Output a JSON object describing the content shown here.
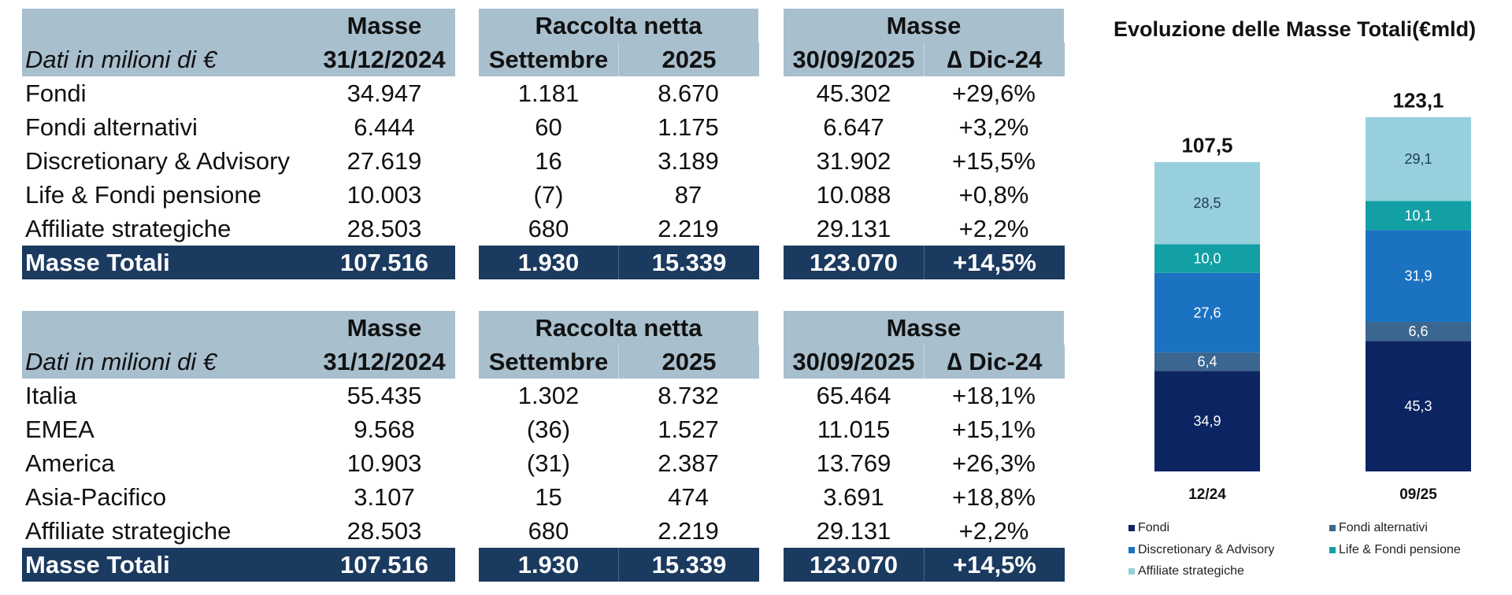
{
  "tables": [
    {
      "group_headers": [
        "Masse",
        "Raccolta netta",
        "Masse"
      ],
      "label_header": "Dati in milioni di €",
      "column_headers": [
        "31/12/2024",
        "Settembre",
        "2025",
        "30/09/2025",
        "∆ Dic-24"
      ],
      "rows": [
        {
          "label": "Fondi",
          "values": [
            "34.947",
            "1.181",
            "8.670",
            "45.302",
            "+29,6%"
          ]
        },
        {
          "label": "Fondi alternativi",
          "values": [
            "6.444",
            "60",
            "1.175",
            "6.647",
            "+3,2%"
          ]
        },
        {
          "label": "Discretionary & Advisory",
          "values": [
            "27.619",
            "16",
            "3.189",
            "31.902",
            "+15,5%"
          ]
        },
        {
          "label": "Life & Fondi pensione",
          "values": [
            "10.003",
            "(7)",
            "87",
            "10.088",
            "+0,8%"
          ]
        },
        {
          "label": "Affiliate strategiche",
          "values": [
            "28.503",
            "680",
            "2.219",
            "29.131",
            "+2,2%"
          ]
        }
      ],
      "total": {
        "label": "Masse Totali",
        "values": [
          "107.516",
          "1.930",
          "15.339",
          "123.070",
          "+14,5%"
        ]
      }
    },
    {
      "group_headers": [
        "Masse",
        "Raccolta netta",
        "Masse"
      ],
      "label_header": "Dati in milioni di €",
      "column_headers": [
        "31/12/2024",
        "Settembre",
        "2025",
        "30/09/2025",
        "∆ Dic-24"
      ],
      "rows": [
        {
          "label": "Italia",
          "values": [
            "55.435",
            "1.302",
            "8.732",
            "65.464",
            "+18,1%"
          ]
        },
        {
          "label": "EMEA",
          "values": [
            "9.568",
            "(36)",
            "1.527",
            "11.015",
            "+15,1%"
          ]
        },
        {
          "label": "America",
          "values": [
            "10.903",
            "(31)",
            "2.387",
            "13.769",
            "+26,3%"
          ]
        },
        {
          "label": "Asia-Pacifico",
          "values": [
            "3.107",
            "15",
            "474",
            "3.691",
            "+18,8%"
          ]
        },
        {
          "label": "Affiliate strategiche",
          "values": [
            "28.503",
            "680",
            "2.219",
            "29.131",
            "+2,2%"
          ]
        }
      ],
      "total": {
        "label": "Masse Totali",
        "values": [
          "107.516",
          "1.930",
          "15.339",
          "123.070",
          "+14,5%"
        ]
      }
    }
  ],
  "chart_data": {
    "type": "bar",
    "stacked": true,
    "title": "Evoluzione delle Masse Totali(€mld)",
    "categories": [
      "12/24",
      "09/25"
    ],
    "series": [
      {
        "name": "Fondi",
        "color": "#0c2461",
        "values": [
          34.9,
          45.3
        ],
        "labels": [
          "34,9",
          "45,3"
        ]
      },
      {
        "name": "Fondi alternativi",
        "color": "#3a6690",
        "values": [
          6.4,
          6.6
        ],
        "labels": [
          "6,4",
          "6,6"
        ]
      },
      {
        "name": "Discretionary & Advisory",
        "color": "#1a72c0",
        "values": [
          27.6,
          31.9
        ],
        "labels": [
          "27,6",
          "31,9"
        ]
      },
      {
        "name": "Life & Fondi pensione",
        "color": "#12a0a4",
        "values": [
          10.0,
          10.1
        ],
        "labels": [
          "10,0",
          "10,1"
        ]
      },
      {
        "name": "Affiliate strategiche",
        "color": "#98cfdc",
        "values": [
          28.5,
          29.1
        ],
        "labels": [
          "28,5",
          "29,1"
        ]
      }
    ],
    "totals": [
      107.5,
      123.1
    ],
    "total_labels": [
      "107,5",
      "123,1"
    ],
    "legend_position": "bottom",
    "grid": false
  }
}
